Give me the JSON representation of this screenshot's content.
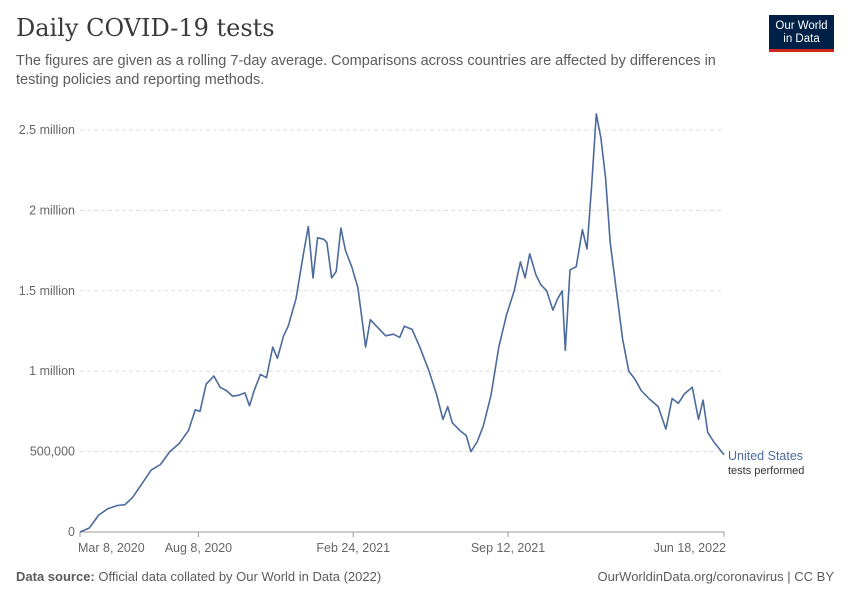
{
  "title": "Daily COVID-19 tests",
  "subtitle": "The figures are given as a rolling 7-day average. Comparisons across countries are affected by differences in testing policies and reporting methods.",
  "logo": {
    "line1": "Our World",
    "line2": "in Data",
    "bg": "#002147",
    "accent": "#ce261e"
  },
  "footer": {
    "source_label": "Data source:",
    "source_text": "Official data collated by Our World in Data (2022)",
    "right_text": "OurWorldinData.org/coronavirus | CC BY"
  },
  "chart_data": {
    "type": "line",
    "title": "Daily COVID-19 tests",
    "xlabel": "",
    "ylabel": "",
    "ylim": [
      0,
      2500000
    ],
    "xlim": [
      "2020-03-08",
      "2022-06-18"
    ],
    "yticks": [
      {
        "value": 0,
        "label": "0"
      },
      {
        "value": 500000,
        "label": "500,000"
      },
      {
        "value": 1000000,
        "label": "1 million"
      },
      {
        "value": 1500000,
        "label": "1.5 million"
      },
      {
        "value": 2000000,
        "label": "2 million"
      },
      {
        "value": 2500000,
        "label": "2.5 million"
      }
    ],
    "xticks": [
      {
        "value": "2020-03-08",
        "label": "Mar 8, 2020"
      },
      {
        "value": "2020-08-08",
        "label": "Aug 8, 2020"
      },
      {
        "value": "2021-02-24",
        "label": "Feb 24, 2021"
      },
      {
        "value": "2021-09-12",
        "label": "Sep 12, 2021"
      },
      {
        "value": "2022-06-18",
        "label": "Jun 18, 2022"
      }
    ],
    "grid": "horizontal-dashed",
    "series": [
      {
        "name": "United States",
        "sublabel": "tests performed",
        "color": "#4c6a9c",
        "points": [
          [
            "2020-03-08",
            0
          ],
          [
            "2020-03-20",
            25000
          ],
          [
            "2020-04-01",
            105000
          ],
          [
            "2020-04-13",
            145000
          ],
          [
            "2020-04-25",
            165000
          ],
          [
            "2020-05-05",
            170000
          ],
          [
            "2020-05-15",
            215000
          ],
          [
            "2020-05-27",
            300000
          ],
          [
            "2020-06-08",
            385000
          ],
          [
            "2020-06-20",
            420000
          ],
          [
            "2020-07-02",
            500000
          ],
          [
            "2020-07-14",
            550000
          ],
          [
            "2020-07-26",
            630000
          ],
          [
            "2020-08-04",
            760000
          ],
          [
            "2020-08-10",
            750000
          ],
          [
            "2020-08-18",
            920000
          ],
          [
            "2020-08-28",
            970000
          ],
          [
            "2020-09-05",
            900000
          ],
          [
            "2020-09-13",
            880000
          ],
          [
            "2020-09-21",
            845000
          ],
          [
            "2020-09-29",
            850000
          ],
          [
            "2020-10-07",
            865000
          ],
          [
            "2020-10-13",
            785000
          ],
          [
            "2020-10-19",
            880000
          ],
          [
            "2020-10-27",
            980000
          ],
          [
            "2020-11-04",
            960000
          ],
          [
            "2020-11-12",
            1150000
          ],
          [
            "2020-11-18",
            1080000
          ],
          [
            "2020-11-26",
            1220000
          ],
          [
            "2020-12-02",
            1280000
          ],
          [
            "2020-12-12",
            1450000
          ],
          [
            "2020-12-22",
            1740000
          ],
          [
            "2020-12-28",
            1900000
          ],
          [
            "2021-01-03",
            1580000
          ],
          [
            "2021-01-09",
            1830000
          ],
          [
            "2021-01-17",
            1820000
          ],
          [
            "2021-01-21",
            1800000
          ],
          [
            "2021-01-27",
            1580000
          ],
          [
            "2021-02-02",
            1620000
          ],
          [
            "2021-02-08",
            1890000
          ],
          [
            "2021-02-14",
            1750000
          ],
          [
            "2021-02-22",
            1650000
          ],
          [
            "2021-03-02",
            1520000
          ],
          [
            "2021-03-08",
            1300000
          ],
          [
            "2021-03-12",
            1150000
          ],
          [
            "2021-03-18",
            1320000
          ],
          [
            "2021-03-28",
            1270000
          ],
          [
            "2021-04-07",
            1220000
          ],
          [
            "2021-04-17",
            1230000
          ],
          [
            "2021-04-25",
            1210000
          ],
          [
            "2021-05-01",
            1280000
          ],
          [
            "2021-05-11",
            1260000
          ],
          [
            "2021-05-21",
            1150000
          ],
          [
            "2021-06-02",
            1000000
          ],
          [
            "2021-06-12",
            850000
          ],
          [
            "2021-06-20",
            700000
          ],
          [
            "2021-06-26",
            780000
          ],
          [
            "2021-07-02",
            680000
          ],
          [
            "2021-07-12",
            630000
          ],
          [
            "2021-07-20",
            600000
          ],
          [
            "2021-07-26",
            500000
          ],
          [
            "2021-08-03",
            560000
          ],
          [
            "2021-08-11",
            660000
          ],
          [
            "2021-08-21",
            850000
          ],
          [
            "2021-08-31",
            1150000
          ],
          [
            "2021-09-10",
            1350000
          ],
          [
            "2021-09-20",
            1500000
          ],
          [
            "2021-09-28",
            1680000
          ],
          [
            "2021-10-04",
            1580000
          ],
          [
            "2021-10-10",
            1730000
          ],
          [
            "2021-10-18",
            1600000
          ],
          [
            "2021-10-24",
            1540000
          ],
          [
            "2021-11-01",
            1500000
          ],
          [
            "2021-11-09",
            1380000
          ],
          [
            "2021-11-15",
            1450000
          ],
          [
            "2021-11-21",
            1500000
          ],
          [
            "2021-11-25",
            1130000
          ],
          [
            "2021-12-01",
            1630000
          ],
          [
            "2021-12-09",
            1650000
          ],
          [
            "2021-12-17",
            1880000
          ],
          [
            "2021-12-23",
            1760000
          ],
          [
            "2021-12-29",
            2150000
          ],
          [
            "2022-01-04",
            2600000
          ],
          [
            "2022-01-10",
            2450000
          ],
          [
            "2022-01-16",
            2200000
          ],
          [
            "2022-01-22",
            1800000
          ],
          [
            "2022-01-30",
            1500000
          ],
          [
            "2022-02-07",
            1200000
          ],
          [
            "2022-02-15",
            1000000
          ],
          [
            "2022-02-23",
            950000
          ],
          [
            "2022-03-03",
            880000
          ],
          [
            "2022-03-13",
            830000
          ],
          [
            "2022-03-25",
            780000
          ],
          [
            "2022-04-04",
            640000
          ],
          [
            "2022-04-12",
            830000
          ],
          [
            "2022-04-20",
            800000
          ],
          [
            "2022-04-28",
            860000
          ],
          [
            "2022-05-08",
            900000
          ],
          [
            "2022-05-16",
            700000
          ],
          [
            "2022-05-22",
            820000
          ],
          [
            "2022-05-28",
            620000
          ],
          [
            "2022-06-05",
            560000
          ],
          [
            "2022-06-18",
            480000
          ]
        ]
      }
    ]
  }
}
